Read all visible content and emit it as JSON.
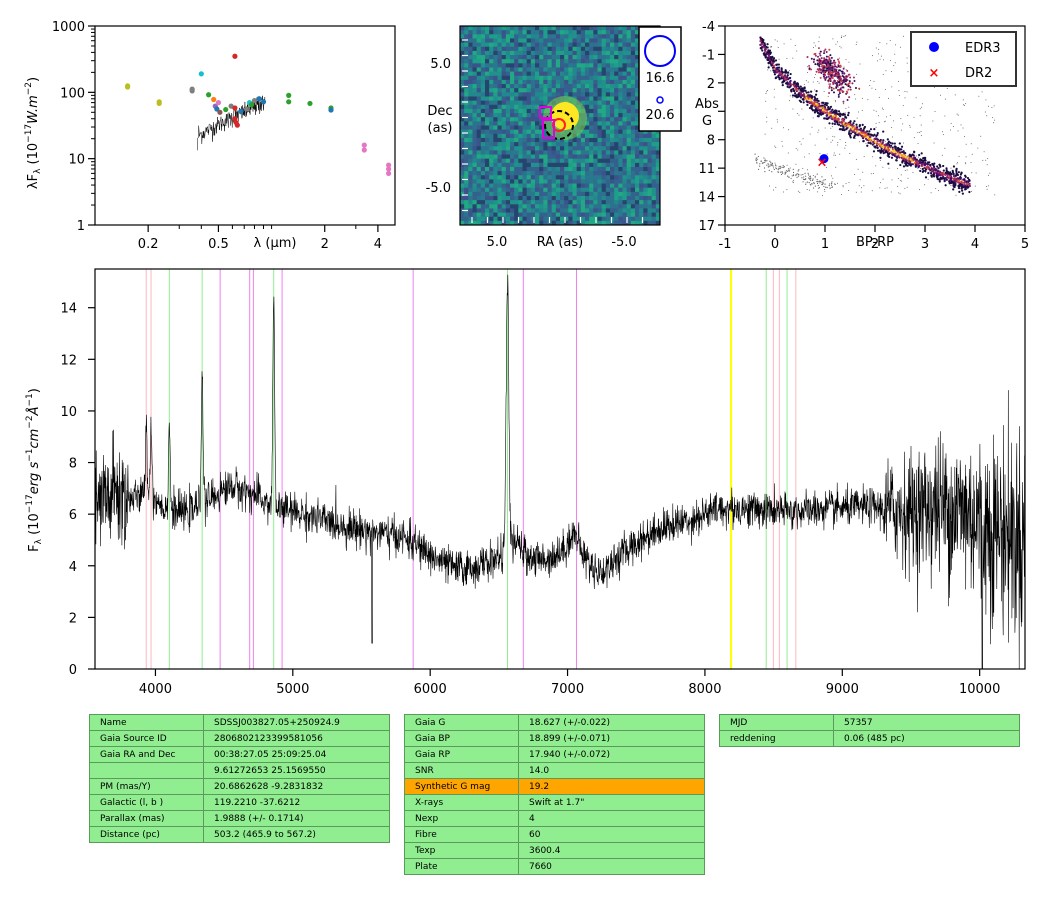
{
  "chart_data": [
    {
      "type": "scatter",
      "panel": "sed",
      "xlabel": "λ (μm)",
      "ylabel": "λF_λ (10^-17 W.m^-2)",
      "xscale": "log",
      "yscale": "log",
      "xlim": [
        0.1,
        5.0
      ],
      "ylim": [
        1,
        1000
      ],
      "xticklabels": [
        "0.2",
        "0.5",
        "2",
        "4"
      ],
      "yticklabels": [
        "1",
        "10",
        "100",
        "1000"
      ],
      "points": [
        {
          "x": 0.153,
          "y": 120,
          "color": "#bcbd22"
        },
        {
          "x": 0.153,
          "y": 125,
          "color": "#bcbd22"
        },
        {
          "x": 0.231,
          "y": 68,
          "color": "#bcbd22"
        },
        {
          "x": 0.231,
          "y": 72,
          "color": "#bcbd22"
        },
        {
          "x": 0.355,
          "y": 105,
          "color": "#7f7f7f"
        },
        {
          "x": 0.355,
          "y": 112,
          "color": "#7f7f7f"
        },
        {
          "x": 0.4,
          "y": 190,
          "color": "#17becf"
        },
        {
          "x": 0.44,
          "y": 92,
          "color": "#2ca02c"
        },
        {
          "x": 0.47,
          "y": 78,
          "color": "#ff7f0e"
        },
        {
          "x": 0.48,
          "y": 62,
          "color": "#9467bd"
        },
        {
          "x": 0.49,
          "y": 56,
          "color": "#1f77b4"
        },
        {
          "x": 0.5,
          "y": 70,
          "color": "#e377c2"
        },
        {
          "x": 0.51,
          "y": 50,
          "color": "#8c564b"
        },
        {
          "x": 0.55,
          "y": 55,
          "color": "#2ca02c"
        },
        {
          "x": 0.59,
          "y": 62,
          "color": "#7f7f7f"
        },
        {
          "x": 0.62,
          "y": 350,
          "color": "#d62728"
        },
        {
          "x": 0.62,
          "y": 58,
          "color": "#d62728"
        },
        {
          "x": 0.62,
          "y": 40,
          "color": "#d62728"
        },
        {
          "x": 0.63,
          "y": 35,
          "color": "#d62728"
        },
        {
          "x": 0.64,
          "y": 32,
          "color": "#d62728"
        },
        {
          "x": 0.67,
          "y": 52,
          "color": "#1f77b4"
        },
        {
          "x": 0.72,
          "y": 56,
          "color": "#7f7f7f"
        },
        {
          "x": 0.75,
          "y": 70,
          "color": "#17becf"
        },
        {
          "x": 0.77,
          "y": 65,
          "color": "#2ca02c"
        },
        {
          "x": 0.8,
          "y": 75,
          "color": "#7f7f7f"
        },
        {
          "x": 0.85,
          "y": 80,
          "color": "#1f77b4"
        },
        {
          "x": 0.9,
          "y": 72,
          "color": "#1f77b4"
        },
        {
          "x": 1.25,
          "y": 72,
          "color": "#2ca02c"
        },
        {
          "x": 1.25,
          "y": 90,
          "color": "#2ca02c"
        },
        {
          "x": 1.65,
          "y": 68,
          "color": "#2ca02c"
        },
        {
          "x": 2.17,
          "y": 58,
          "color": "#2ca02c"
        },
        {
          "x": 2.17,
          "y": 54,
          "color": "#1f77b4"
        },
        {
          "x": 3.35,
          "y": 16,
          "color": "#e377c2"
        },
        {
          "x": 3.35,
          "y": 13.5,
          "color": "#e377c2"
        },
        {
          "x": 4.6,
          "y": 8,
          "color": "#e377c2"
        },
        {
          "x": 4.6,
          "y": 6,
          "color": "#e377c2"
        },
        {
          "x": 4.6,
          "y": 7,
          "color": "#e377c2"
        }
      ],
      "spectrum_overlay": {
        "x_range_um": [
          0.38,
          0.92
        ],
        "y_approx": [
          25,
          75
        ]
      }
    },
    {
      "type": "heatmap",
      "panel": "image",
      "xlabel": "RA (as)",
      "ylabel": "Dec (as)",
      "xticklabels": [
        "5.0",
        "-5.0"
      ],
      "yticklabels": [
        "5.0",
        "-5.0"
      ],
      "legend": [
        {
          "label": "16.6",
          "marker": "large-blue-circle"
        },
        {
          "label": "20.6",
          "marker": "small-blue-circle"
        }
      ]
    },
    {
      "type": "scatter",
      "panel": "hrd",
      "xlabel": "BP-RP",
      "ylabel": "Abs G",
      "xlim": [
        -1,
        5
      ],
      "ylim": [
        17,
        -4
      ],
      "xticklabels": [
        "-1",
        "0",
        "1",
        "2",
        "3",
        "4",
        "5"
      ],
      "yticklabels": [
        "-4",
        "-1",
        "2",
        "5",
        "8",
        "11",
        "14",
        "17"
      ],
      "series": [
        {
          "name": "EDR3",
          "x": 0.98,
          "y": 10.0,
          "marker": "blue-dot"
        },
        {
          "name": "DR2",
          "x": 0.94,
          "y": 10.3,
          "marker": "red-x"
        }
      ],
      "legend_position": "top-right"
    },
    {
      "type": "line",
      "panel": "spectrum",
      "ylabel": "F_λ (10^-17 erg s^-1 cm^-2 Å^-1)",
      "xlim": [
        3560,
        10330
      ],
      "ylim": [
        0,
        15.5
      ],
      "xticklabels": [
        "4000",
        "5000",
        "6000",
        "7000",
        "8000",
        "9000",
        "10000"
      ],
      "yticklabels": [
        "0",
        "2",
        "4",
        "6",
        "8",
        "10",
        "12",
        "14"
      ],
      "continuum_knots": [
        [
          3560,
          6.2
        ],
        [
          3700,
          6.8
        ],
        [
          3800,
          6.6
        ],
        [
          3900,
          6.7
        ],
        [
          4000,
          6.6
        ],
        [
          4100,
          6.1
        ],
        [
          4250,
          6.1
        ],
        [
          4400,
          6.6
        ],
        [
          4550,
          7.1
        ],
        [
          4700,
          6.8
        ],
        [
          4850,
          6.3
        ],
        [
          5000,
          6.1
        ],
        [
          5200,
          5.8
        ],
        [
          5400,
          5.5
        ],
        [
          5600,
          5.3
        ],
        [
          5800,
          5.1
        ],
        [
          5900,
          4.8
        ],
        [
          6000,
          4.4
        ],
        [
          6100,
          4.1
        ],
        [
          6200,
          3.9
        ],
        [
          6300,
          3.9
        ],
        [
          6400,
          4.1
        ],
        [
          6500,
          4.3
        ],
        [
          6620,
          4.9
        ],
        [
          6700,
          4.4
        ],
        [
          6800,
          4.2
        ],
        [
          6950,
          4.5
        ],
        [
          7050,
          5.3
        ],
        [
          7100,
          4.6
        ],
        [
          7150,
          4.1
        ],
        [
          7250,
          3.7
        ],
        [
          7300,
          4.0
        ],
        [
          7450,
          4.7
        ],
        [
          7650,
          5.4
        ],
        [
          7900,
          5.8
        ],
        [
          8100,
          6.2
        ],
        [
          8300,
          6.2
        ],
        [
          8600,
          6.1
        ],
        [
          8900,
          6.2
        ],
        [
          9200,
          6.3
        ],
        [
          9500,
          6.1
        ],
        [
          9700,
          6.3
        ],
        [
          9900,
          6.1
        ],
        [
          10100,
          5.5
        ],
        [
          10330,
          5.0
        ]
      ],
      "emission_lines": [
        {
          "center": 3933,
          "peak": 9.5
        },
        {
          "center": 3968,
          "peak": 9.5
        },
        {
          "center": 4101,
          "peak": 9.5
        },
        {
          "center": 4340,
          "peak": 11.6
        },
        {
          "center": 4861,
          "peak": 14.5
        },
        {
          "center": 6563,
          "peak": 14.8
        }
      ],
      "absorption_features": [
        {
          "center": 5577,
          "depth": 1.0
        },
        {
          "center": 10020,
          "depth": 0.0
        }
      ],
      "marker_lines": [
        {
          "x": 3933,
          "color": "#ffb6c1"
        },
        {
          "x": 3968,
          "color": "#ffb6c1"
        },
        {
          "x": 4101,
          "color": "#90ee90"
        },
        {
          "x": 4340,
          "color": "#90ee90"
        },
        {
          "x": 4471,
          "color": "#ee82ee"
        },
        {
          "x": 4686,
          "color": "#ee82ee"
        },
        {
          "x": 4713,
          "color": "#ee82ee"
        },
        {
          "x": 4861,
          "color": "#90ee90"
        },
        {
          "x": 4922,
          "color": "#ee82ee"
        },
        {
          "x": 5876,
          "color": "#ee82ee"
        },
        {
          "x": 6563,
          "color": "#90ee90"
        },
        {
          "x": 6678,
          "color": "#ee82ee"
        },
        {
          "x": 7065,
          "color": "#ee82ee"
        },
        {
          "x": 8190,
          "color": "#ffff00"
        },
        {
          "x": 8446,
          "color": "#90ee90"
        },
        {
          "x": 8498,
          "color": "#ffb6c1"
        },
        {
          "x": 8542,
          "color": "#ffb6c1"
        },
        {
          "x": 8598,
          "color": "#90ee90"
        },
        {
          "x": 8662,
          "color": "#ffb6c1"
        }
      ]
    }
  ],
  "tables": {
    "left": [
      [
        "Name",
        "SDSSJ003827.05+250924.9"
      ],
      [
        "Gaia Source ID",
        "2806802123399581056"
      ],
      [
        "Gaia RA and Dec",
        "00:38:27.05    25:09:25.04"
      ],
      [
        "",
        "9.61272653    25.1569550"
      ],
      [
        "PM (mas/Y)",
        "20.6862628    -9.2831832"
      ],
      [
        "Galactic (l, b )",
        "119.2210    -37.6212"
      ],
      [
        "Parallax (mas)",
        "1.9888 (+/- 0.1714)"
      ],
      [
        "Distance (pc)",
        "503.2 (465.9 to 567.2)"
      ]
    ],
    "middle": [
      [
        "Gaia G",
        "18.627 (+/-0.022)"
      ],
      [
        "Gaia BP",
        "18.899 (+/-0.071)"
      ],
      [
        "Gaia RP",
        "17.940 (+/-0.072)"
      ],
      [
        "SNR",
        "14.0"
      ],
      [
        "Synthetic G mag",
        "19.2"
      ],
      [
        "X-rays",
        "Swift at 1.7\""
      ],
      [
        "Nexp",
        "4"
      ],
      [
        "Fibre",
        "60"
      ],
      [
        "Texp",
        "3600.4"
      ],
      [
        "Plate",
        "7660"
      ]
    ],
    "right": [
      [
        "MJD",
        "57357"
      ],
      [
        "reddening",
        "0.06 (485 pc)"
      ]
    ],
    "highlight": "Synthetic G mag",
    "highlight_color": "#ffa500",
    "cell_color": "#90ee90"
  }
}
